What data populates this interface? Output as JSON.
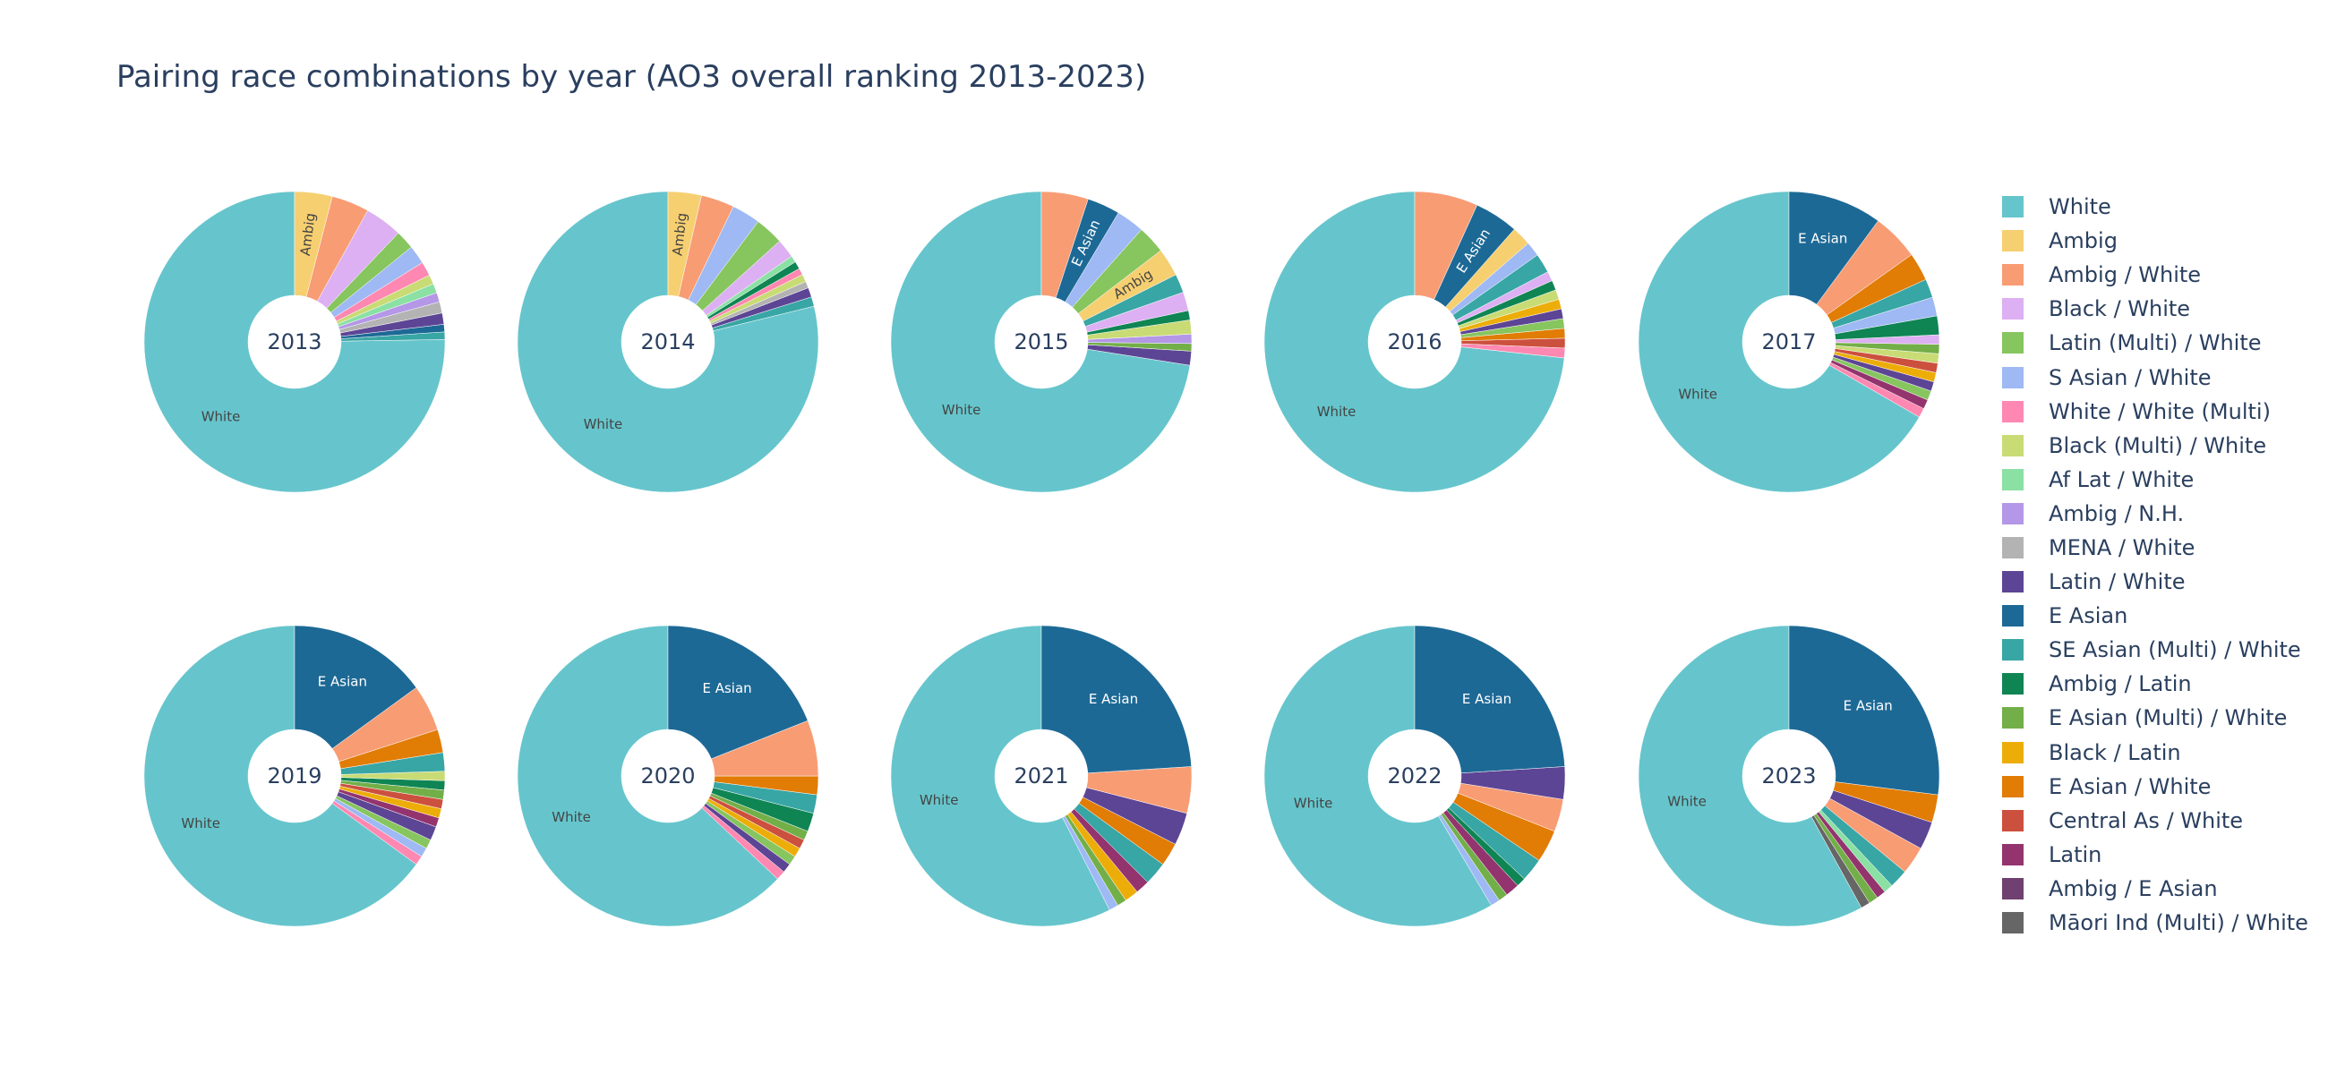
{
  "chart_data": {
    "type": "pie",
    "title": "Pairing race combinations by year (AO3 overall ranking 2013-2023)",
    "legend_placement": "right",
    "categories": [
      {
        "name": "White",
        "color": "#66c5cc"
      },
      {
        "name": "Ambig",
        "color": "#f6cf71"
      },
      {
        "name": "Ambig / White",
        "color": "#f89c74"
      },
      {
        "name": "Black / White",
        "color": "#dcb0f2"
      },
      {
        "name": "Latin (Multi) / White",
        "color": "#87c55f"
      },
      {
        "name": "S Asian / White",
        "color": "#9eb9f3"
      },
      {
        "name": "White / White (Multi)",
        "color": "#fe88b1"
      },
      {
        "name": "Black (Multi) / White",
        "color": "#c9db74"
      },
      {
        "name": "Af Lat / White",
        "color": "#8be0a4"
      },
      {
        "name": "Ambig / N.H.",
        "color": "#b497e7"
      },
      {
        "name": "MENA / White",
        "color": "#b3b3b3"
      },
      {
        "name": "Latin / White",
        "color": "#5d4595"
      },
      {
        "name": "E Asian",
        "color": "#1d6996"
      },
      {
        "name": "SE Asian (Multi) / White",
        "color": "#38a6a5"
      },
      {
        "name": "Ambig / Latin",
        "color": "#0f8554"
      },
      {
        "name": "E Asian (Multi) / White",
        "color": "#73af48"
      },
      {
        "name": "Black / Latin",
        "color": "#edad08"
      },
      {
        "name": "E Asian / White",
        "color": "#e17c05"
      },
      {
        "name": "Central As / White",
        "color": "#cc503e"
      },
      {
        "name": "Latin",
        "color": "#94346e"
      },
      {
        "name": "Ambig / E Asian",
        "color": "#6f4070"
      },
      {
        "name": "Māori Ind (Multi) / White",
        "color": "#666666"
      }
    ],
    "pies": [
      {
        "year": "2013",
        "slices": [
          {
            "c": "White",
            "v": 74.5,
            "label": "White"
          },
          {
            "c": "SE Asian (Multi) / White",
            "v": 0.8
          },
          {
            "c": "E Asian",
            "v": 0.8
          },
          {
            "c": "Latin / White",
            "v": 1.2
          },
          {
            "c": "MENA / White",
            "v": 1.2
          },
          {
            "c": "Ambig / N.H.",
            "v": 1.0
          },
          {
            "c": "Af Lat / White",
            "v": 1.0
          },
          {
            "c": "Black (Multi) / White",
            "v": 1.0
          },
          {
            "c": "White / White (Multi)",
            "v": 1.5
          },
          {
            "c": "S Asian / White",
            "v": 2.0
          },
          {
            "c": "Latin (Multi) / White",
            "v": 2.0
          },
          {
            "c": "Black / White",
            "v": 4.0
          },
          {
            "c": "Ambig / White",
            "v": 4.0
          },
          {
            "c": "Ambig",
            "v": 4.0,
            "label": "Ambig"
          }
        ]
      },
      {
        "year": "2014",
        "slices": [
          {
            "c": "White",
            "v": 77.0,
            "label": "White"
          },
          {
            "c": "SE Asian (Multi) / White",
            "v": 1.0
          },
          {
            "c": "Latin / White",
            "v": 1.0
          },
          {
            "c": "MENA / White",
            "v": 0.7
          },
          {
            "c": "Black (Multi) / White",
            "v": 0.8
          },
          {
            "c": "White / White (Multi)",
            "v": 0.7
          },
          {
            "c": "Ambig / Latin",
            "v": 0.8
          },
          {
            "c": "Af Lat / White",
            "v": 0.7
          },
          {
            "c": "Black / White",
            "v": 2.0
          },
          {
            "c": "Latin (Multi) / White",
            "v": 3.0
          },
          {
            "c": "S Asian / White",
            "v": 3.0
          },
          {
            "c": "Ambig / White",
            "v": 3.5
          },
          {
            "c": "Ambig",
            "v": 3.5,
            "label": "Ambig"
          }
        ]
      },
      {
        "year": "2015",
        "slices": [
          {
            "c": "White",
            "v": 72.0,
            "label": "White"
          },
          {
            "c": "Latin / White",
            "v": 1.5
          },
          {
            "c": "E Asian (Multi) / White",
            "v": 0.8
          },
          {
            "c": "Ambig / N.H.",
            "v": 1.0
          },
          {
            "c": "Black (Multi) / White",
            "v": 1.5
          },
          {
            "c": "Ambig / Latin",
            "v": 1.0
          },
          {
            "c": "Black / White",
            "v": 2.0
          },
          {
            "c": "SE Asian (Multi) / White",
            "v": 2.0
          },
          {
            "c": "Ambig",
            "v": 3.0,
            "label": "Ambig"
          },
          {
            "c": "Latin (Multi) / White",
            "v": 3.0
          },
          {
            "c": "S Asian / White",
            "v": 3.0
          },
          {
            "c": "E Asian",
            "v": 3.5,
            "label": "E Asian"
          },
          {
            "c": "Ambig / White",
            "v": 5.0
          }
        ]
      },
      {
        "year": "2016",
        "slices": [
          {
            "c": "White",
            "v": 70.0,
            "label": "White"
          },
          {
            "c": "White / White (Multi)",
            "v": 1.0
          },
          {
            "c": "Central As / White",
            "v": 1.0
          },
          {
            "c": "E Asian / White",
            "v": 1.0
          },
          {
            "c": "Latin (Multi) / White",
            "v": 1.0
          },
          {
            "c": "Latin / White",
            "v": 1.0
          },
          {
            "c": "Black / Latin",
            "v": 1.0
          },
          {
            "c": "Black (Multi) / White",
            "v": 1.0
          },
          {
            "c": "Ambig / Latin",
            "v": 1.0
          },
          {
            "c": "Black / White",
            "v": 1.0
          },
          {
            "c": "SE Asian (Multi) / White",
            "v": 2.0
          },
          {
            "c": "S Asian / White",
            "v": 1.5
          },
          {
            "c": "Ambig",
            "v": 2.0
          },
          {
            "c": "E Asian",
            "v": 4.5,
            "label": "E Asian"
          },
          {
            "c": "Ambig / White",
            "v": 6.5
          }
        ]
      },
      {
        "year": "2017",
        "slices": [
          {
            "c": "White",
            "v": 66.0,
            "label": "White"
          },
          {
            "c": "White / White (Multi)",
            "v": 1.0
          },
          {
            "c": "Latin",
            "v": 1.0
          },
          {
            "c": "Latin (Multi) / White",
            "v": 1.0
          },
          {
            "c": "Latin / White",
            "v": 1.0
          },
          {
            "c": "Black / Latin",
            "v": 1.0
          },
          {
            "c": "Central As / White",
            "v": 1.0
          },
          {
            "c": "Black (Multi) / White",
            "v": 1.0
          },
          {
            "c": "E Asian (Multi) / White",
            "v": 1.0
          },
          {
            "c": "Black / White",
            "v": 1.0
          },
          {
            "c": "Ambig / Latin",
            "v": 2.0
          },
          {
            "c": "S Asian / White",
            "v": 2.0
          },
          {
            "c": "SE Asian (Multi) / White",
            "v": 2.0
          },
          {
            "c": "E Asian / White",
            "v": 3.0
          },
          {
            "c": "Ambig / White",
            "v": 5.0
          },
          {
            "c": "E Asian",
            "v": 10.0,
            "label": "E Asian"
          }
        ]
      },
      {
        "year": "2019",
        "slices": [
          {
            "c": "White",
            "v": 65.0,
            "label": "White"
          },
          {
            "c": "White / White (Multi)",
            "v": 1.0
          },
          {
            "c": "S Asian / White",
            "v": 1.0
          },
          {
            "c": "Latin (Multi) / White",
            "v": 1.0
          },
          {
            "c": "Latin / White",
            "v": 1.5
          },
          {
            "c": "Latin",
            "v": 1.0
          },
          {
            "c": "Black / Latin",
            "v": 1.0
          },
          {
            "c": "Central As / White",
            "v": 1.0
          },
          {
            "c": "E Asian (Multi) / White",
            "v": 1.0
          },
          {
            "c": "Ambig / Latin",
            "v": 1.0
          },
          {
            "c": "Black (Multi) / White",
            "v": 1.0
          },
          {
            "c": "SE Asian (Multi) / White",
            "v": 2.0
          },
          {
            "c": "E Asian / White",
            "v": 2.5
          },
          {
            "c": "Ambig / White",
            "v": 5.0
          },
          {
            "c": "E Asian",
            "v": 15.0,
            "label": "E Asian"
          }
        ]
      },
      {
        "year": "2020",
        "slices": [
          {
            "c": "White",
            "v": 63.0,
            "label": "White"
          },
          {
            "c": "White / White (Multi)",
            "v": 1.0
          },
          {
            "c": "Latin / White",
            "v": 1.0
          },
          {
            "c": "Latin (Multi) / White",
            "v": 1.0
          },
          {
            "c": "Black / Latin",
            "v": 1.0
          },
          {
            "c": "Central As / White",
            "v": 1.0
          },
          {
            "c": "E Asian (Multi) / White",
            "v": 1.0
          },
          {
            "c": "Ambig / Latin",
            "v": 2.0
          },
          {
            "c": "SE Asian (Multi) / White",
            "v": 2.0
          },
          {
            "c": "E Asian / White",
            "v": 2.0
          },
          {
            "c": "Ambig / White",
            "v": 6.0
          },
          {
            "c": "E Asian",
            "v": 19.0,
            "label": "E Asian"
          }
        ]
      },
      {
        "year": "2021",
        "slices": [
          {
            "c": "White",
            "v": 57.5,
            "label": "White"
          },
          {
            "c": "S Asian / White",
            "v": 1.0
          },
          {
            "c": "E Asian (Multi) / White",
            "v": 1.0
          },
          {
            "c": "Black / Latin",
            "v": 1.5
          },
          {
            "c": "Latin",
            "v": 1.5
          },
          {
            "c": "SE Asian (Multi) / White",
            "v": 2.5
          },
          {
            "c": "E Asian / White",
            "v": 2.5
          },
          {
            "c": "Latin / White",
            "v": 3.5
          },
          {
            "c": "Ambig / White",
            "v": 5.0
          },
          {
            "c": "E Asian",
            "v": 24.0,
            "label": "E Asian"
          }
        ]
      },
      {
        "year": "2022",
        "slices": [
          {
            "c": "White",
            "v": 58.5,
            "label": "White"
          },
          {
            "c": "S Asian / White",
            "v": 1.0
          },
          {
            "c": "E Asian (Multi) / White",
            "v": 1.0
          },
          {
            "c": "Latin",
            "v": 1.5
          },
          {
            "c": "Ambig / Latin",
            "v": 1.0
          },
          {
            "c": "SE Asian (Multi) / White",
            "v": 2.5
          },
          {
            "c": "E Asian / White",
            "v": 3.5
          },
          {
            "c": "Ambig / White",
            "v": 3.5
          },
          {
            "c": "Latin / White",
            "v": 3.5
          },
          {
            "c": "E Asian",
            "v": 24.0,
            "label": "E Asian"
          }
        ]
      },
      {
        "year": "2023",
        "slices": [
          {
            "c": "White",
            "v": 58.0,
            "label": "White"
          },
          {
            "c": "Māori Ind (Multi) / White",
            "v": 1.0
          },
          {
            "c": "E Asian (Multi) / White",
            "v": 1.0
          },
          {
            "c": "Latin",
            "v": 1.0
          },
          {
            "c": "Af Lat / White",
            "v": 1.0
          },
          {
            "c": "SE Asian (Multi) / White",
            "v": 2.0
          },
          {
            "c": "Ambig / White",
            "v": 3.0
          },
          {
            "c": "Latin / White",
            "v": 3.0
          },
          {
            "c": "E Asian / White",
            "v": 3.0
          },
          {
            "c": "E Asian",
            "v": 27.0,
            "label": "E Asian"
          }
        ]
      }
    ]
  }
}
